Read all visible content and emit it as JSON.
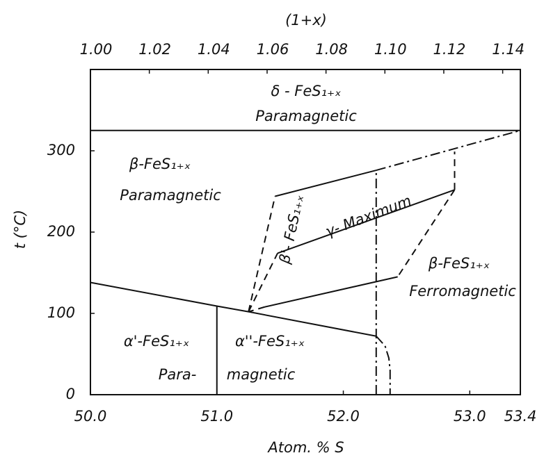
{
  "chart_data": {
    "type": "line",
    "xlabel": "Atom. % S",
    "ylabel": "t (°C)",
    "x2label": "(1+x)",
    "xlim": [
      50.0,
      53.4
    ],
    "xticks": [
      {
        "value": 50.0,
        "label": "50.0"
      },
      {
        "value": 51.0,
        "label": "51.0"
      },
      {
        "value": 52.0,
        "label": "52.0"
      },
      53.4,
      {
        "value": 53.0,
        "label": "53.0"
      }
    ],
    "x2lim": [
      1.0,
      1.146
    ],
    "x2ticks": [
      {
        "value": 1.0,
        "label": "1.00"
      },
      1.02,
      1.04,
      1.06,
      1.08,
      {
        "value": 1.1,
        "label": "1.10"
      },
      1.12,
      1.14
    ],
    "ylim": [
      0,
      400
    ],
    "yticks": [
      0,
      100,
      200,
      300
    ],
    "color": "#111111",
    "series": [
      {
        "style": "solid",
        "x": [
          50.0,
          53.4
        ],
        "values": [
          325,
          325
        ]
      },
      {
        "style": "solid",
        "x": [
          50.0,
          51.0,
          51.25,
          52.26
        ],
        "values": [
          138,
          109,
          102,
          72
        ]
      },
      {
        "style": "solid",
        "x": [
          51.0,
          51.0
        ],
        "values": [
          0,
          109
        ]
      },
      {
        "style": "dashdot",
        "x": [
          52.26,
          52.26
        ],
        "values": [
          0,
          276
        ]
      },
      {
        "style": "dashdot",
        "x": [
          52.26,
          52.33,
          52.36,
          52.37,
          52.37
        ],
        "values": [
          72,
          60,
          45,
          30,
          0
        ]
      },
      {
        "style": "solid",
        "x": [
          51.46,
          52.26
        ],
        "values": [
          244,
          276
        ]
      },
      {
        "style": "dashdot",
        "x": [
          52.26,
          53.4
        ],
        "values": [
          276,
          325
        ]
      },
      {
        "style": "dashed",
        "x": [
          51.25,
          51.46
        ],
        "values": [
          102,
          244
        ]
      },
      {
        "style": "dashed",
        "x": [
          51.25,
          51.48
        ],
        "values": [
          102,
          174
        ]
      },
      {
        "style": "solid",
        "x": [
          51.48,
          52.88
        ],
        "values": [
          174,
          252
        ]
      },
      {
        "style": "dashed",
        "x": [
          52.88,
          52.88
        ],
        "values": [
          252,
          299
        ]
      },
      {
        "style": "dashed",
        "x": [
          52.88,
          52.43
        ],
        "values": [
          252,
          145
        ]
      },
      {
        "style": "solid",
        "x": [
          52.43,
          51.38
        ],
        "values": [
          145,
          108
        ]
      },
      {
        "style": "dashed",
        "x": [
          51.38,
          51.25
        ],
        "values": [
          108,
          102
        ]
      }
    ],
    "annotations": [
      "δ - FeS₁₊ₓ",
      "Paramagnetic",
      "β-FeS₁₊ₓ",
      "Paramagnetic",
      "β'- FeS₁₊ₓ",
      "γ- Maximum",
      "β-FeS₁₊ₓ",
      "Ferromagnetic",
      "α'-FeS₁₊ₓ",
      "α''-FeS₁₊ₓ",
      "Para-",
      "magnetic"
    ]
  }
}
